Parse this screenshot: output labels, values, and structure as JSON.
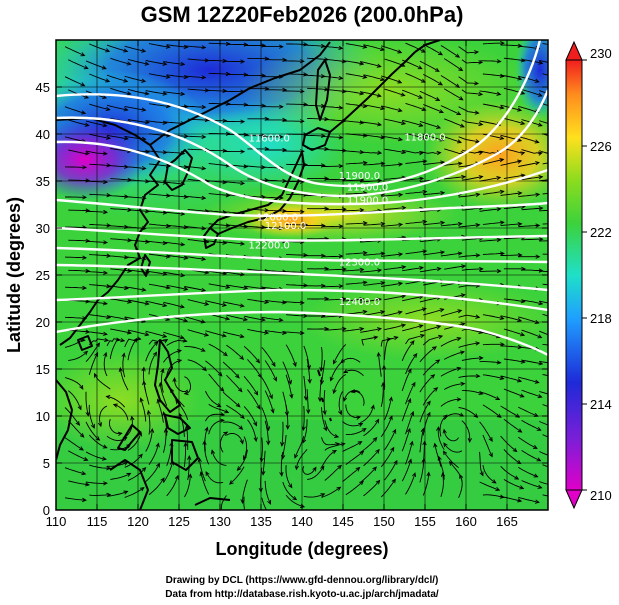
{
  "chart_data": {
    "type": "heatmap",
    "title": "GSM 12Z20Feb2026 (200.0hPa)",
    "xlabel": "Longitude (degrees)",
    "ylabel": "Latitude  (degrees)",
    "xlim": [
      110,
      170
    ],
    "ylim": [
      0,
      50
    ],
    "xticks": [
      "110",
      "115",
      "120",
      "125",
      "130",
      "135",
      "140",
      "145",
      "150",
      "155",
      "160",
      "165"
    ],
    "yticks": [
      "0",
      "5",
      "10",
      "15",
      "20",
      "25",
      "30",
      "35",
      "40",
      "45"
    ],
    "colorbar": {
      "min": 210,
      "max": 230,
      "ticks": [
        "210",
        "214",
        "218",
        "222",
        "226",
        "230"
      ]
    },
    "contour_labels": [
      {
        "text": "11600.0",
        "lon": 136,
        "lat": 39.2
      },
      {
        "text": "11800.0",
        "lon": 155,
        "lat": 39.3
      },
      {
        "text": "11900.0",
        "lon": 147,
        "lat": 35.2
      },
      {
        "text": "11900.0",
        "lon": 148,
        "lat": 34.0
      },
      {
        "text": "11900.0",
        "lon": 148,
        "lat": 32.6
      },
      {
        "text": "12000.0",
        "lon": 137,
        "lat": 30.8
      },
      {
        "text": "12100.0",
        "lon": 138,
        "lat": 29.9
      },
      {
        "text": "12200.0",
        "lon": 136,
        "lat": 27.8
      },
      {
        "text": "12300.0",
        "lon": 147,
        "lat": 26.0
      },
      {
        "text": "12400.0",
        "lon": 147,
        "lat": 21.8
      }
    ]
  },
  "credits": {
    "drawing": "Drawing by DCL (https://www.gfd-dennou.org/library/dcl/)",
    "source": "Data from http://database.rish.kyoto-u.ac.jp/arch/jmadata/"
  },
  "colors": {
    "temp_low": "#e000c8",
    "temp_mid": "#3cd23c",
    "temp_high": "#ffa000",
    "contour": "#ffffff",
    "vector": "#000000"
  }
}
